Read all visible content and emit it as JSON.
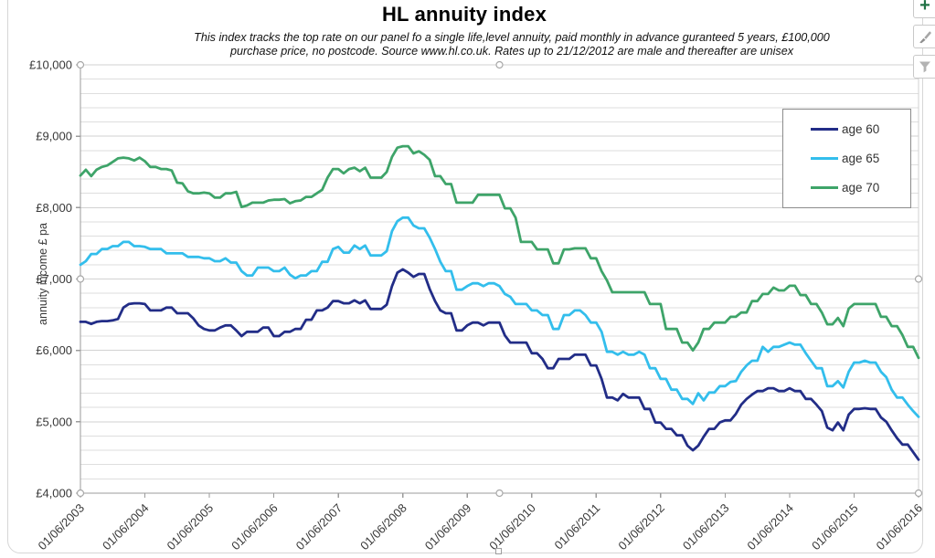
{
  "header": {
    "title": "HL annuity index",
    "subtitle_line1": "This index tracks the top rate on our panel fo a single life,level annuity, paid  monthly in advance guranteed 5 years, £100,000",
    "subtitle_line2": "purchase price, no postcode. Source www.hl.co.uk. Rates up to 21/12/2012 are male and thereafter are unisex"
  },
  "toolbar": {
    "buttons": [
      {
        "icon": "plus-icon",
        "color": "#217346"
      },
      {
        "icon": "brush-icon",
        "color": "#999999"
      },
      {
        "icon": "funnel-icon",
        "color": "#b3b3b3"
      }
    ]
  },
  "colors": {
    "gridline_minor": "#dedede",
    "gridline_major": "#d2d2d2",
    "axis": "#9b9b9b",
    "handle_stroke": "#a8a8a8",
    "label_text": "#383838"
  },
  "chart_data": {
    "type": "line",
    "title": "HL annuity index",
    "xlabel": "",
    "ylabel": "annuity income £ pa",
    "ylim": [
      4000,
      10000
    ],
    "y_major_unit": 1000,
    "y_minor_unit": 200,
    "y_tick_labels": [
      "£10,000",
      "£9,000",
      "£8,000",
      "£7,000",
      "£6,000",
      "£5,000",
      "£4,000"
    ],
    "x_tick_labels": [
      "01/06/2003",
      "01/06/2004",
      "01/06/2005",
      "01/06/2006",
      "01/06/2007",
      "01/06/2008",
      "01/06/2009",
      "01/06/2010",
      "01/06/2011",
      "01/06/2012",
      "01/06/2013",
      "01/06/2014",
      "01/06/2015",
      "01/06/2016"
    ],
    "frequency": "monthly",
    "x_start": "01/06/2003",
    "x_end": "01/06/2016",
    "grid": true,
    "legend_position": "top-right-box",
    "series": [
      {
        "name": "age 60",
        "color": "#222D87",
        "values": [
          6400,
          6400,
          6370,
          6400,
          6410,
          6410,
          6420,
          6440,
          6600,
          6650,
          6660,
          6660,
          6650,
          6560,
          6560,
          6560,
          6600,
          6600,
          6520,
          6520,
          6520,
          6450,
          6350,
          6300,
          6280,
          6280,
          6320,
          6350,
          6350,
          6280,
          6200,
          6260,
          6260,
          6260,
          6320,
          6320,
          6200,
          6200,
          6260,
          6260,
          6300,
          6300,
          6430,
          6430,
          6560,
          6560,
          6600,
          6690,
          6690,
          6660,
          6660,
          6700,
          6660,
          6700,
          6580,
          6580,
          6580,
          6640,
          6900,
          7090,
          7135,
          7090,
          7030,
          7070,
          7070,
          6860,
          6690,
          6560,
          6520,
          6520,
          6280,
          6280,
          6350,
          6390,
          6390,
          6350,
          6390,
          6390,
          6390,
          6210,
          6110,
          6110,
          6110,
          6110,
          5960,
          5960,
          5880,
          5750,
          5750,
          5880,
          5880,
          5880,
          5940,
          5940,
          5940,
          5790,
          5790,
          5600,
          5340,
          5340,
          5300,
          5390,
          5340,
          5340,
          5340,
          5180,
          5180,
          4990,
          4990,
          4900,
          4900,
          4810,
          4810,
          4665,
          4600,
          4665,
          4790,
          4900,
          4900,
          4990,
          5020,
          5020,
          5110,
          5240,
          5320,
          5380,
          5430,
          5430,
          5470,
          5470,
          5430,
          5430,
          5470,
          5430,
          5430,
          5320,
          5320,
          5240,
          5150,
          4920,
          4880,
          4990,
          4880,
          5100,
          5180,
          5180,
          5190,
          5180,
          5180,
          5060,
          5000,
          4880,
          4770,
          4680,
          4680,
          4575,
          4470
        ]
      },
      {
        "name": "age 65",
        "color": "#33BEEC",
        "values": [
          7200,
          7250,
          7350,
          7350,
          7420,
          7420,
          7460,
          7460,
          7520,
          7520,
          7460,
          7460,
          7450,
          7420,
          7420,
          7420,
          7360,
          7360,
          7360,
          7360,
          7310,
          7310,
          7310,
          7290,
          7290,
          7250,
          7250,
          7290,
          7230,
          7230,
          7110,
          7050,
          7050,
          7160,
          7160,
          7160,
          7110,
          7110,
          7160,
          7060,
          7010,
          7050,
          7050,
          7110,
          7110,
          7240,
          7240,
          7420,
          7450,
          7370,
          7370,
          7470,
          7420,
          7470,
          7330,
          7330,
          7330,
          7390,
          7670,
          7810,
          7860,
          7860,
          7750,
          7710,
          7710,
          7580,
          7420,
          7240,
          7110,
          7110,
          6850,
          6850,
          6900,
          6940,
          6940,
          6900,
          6940,
          6940,
          6900,
          6790,
          6750,
          6650,
          6650,
          6650,
          6560,
          6560,
          6495,
          6495,
          6300,
          6300,
          6495,
          6495,
          6560,
          6560,
          6495,
          6390,
          6390,
          6260,
          5980,
          5980,
          5940,
          5980,
          5940,
          5940,
          5980,
          5940,
          5750,
          5750,
          5600,
          5600,
          5450,
          5450,
          5320,
          5320,
          5250,
          5400,
          5300,
          5410,
          5410,
          5500,
          5500,
          5560,
          5570,
          5700,
          5790,
          5855,
          5855,
          6050,
          5980,
          6050,
          6050,
          6080,
          6110,
          6080,
          6080,
          5960,
          5855,
          5750,
          5750,
          5500,
          5500,
          5570,
          5480,
          5700,
          5830,
          5830,
          5855,
          5830,
          5830,
          5700,
          5625,
          5450,
          5340,
          5340,
          5240,
          5150,
          5070
        ]
      },
      {
        "name": "age 70",
        "color": "#3EA469",
        "values": [
          8450,
          8530,
          8440,
          8530,
          8570,
          8590,
          8640,
          8690,
          8700,
          8690,
          8660,
          8700,
          8650,
          8570,
          8570,
          8540,
          8540,
          8520,
          8350,
          8340,
          8230,
          8200,
          8200,
          8210,
          8200,
          8140,
          8140,
          8200,
          8200,
          8220,
          8010,
          8030,
          8070,
          8070,
          8070,
          8100,
          8110,
          8110,
          8120,
          8060,
          8090,
          8100,
          8150,
          8150,
          8200,
          8250,
          8420,
          8540,
          8540,
          8480,
          8540,
          8560,
          8510,
          8560,
          8420,
          8420,
          8420,
          8500,
          8710,
          8840,
          8860,
          8860,
          8760,
          8790,
          8740,
          8670,
          8440,
          8440,
          8330,
          8330,
          8070,
          8070,
          8070,
          8070,
          8180,
          8180,
          8180,
          8180,
          8180,
          7990,
          7990,
          7860,
          7520,
          7520,
          7520,
          7415,
          7415,
          7415,
          7220,
          7220,
          7415,
          7415,
          7430,
          7430,
          7430,
          7290,
          7290,
          7110,
          6980,
          6815,
          6815,
          6815,
          6815,
          6815,
          6815,
          6815,
          6650,
          6650,
          6650,
          6300,
          6300,
          6300,
          6110,
          6110,
          6000,
          6110,
          6300,
          6300,
          6390,
          6390,
          6390,
          6470,
          6470,
          6530,
          6530,
          6690,
          6690,
          6790,
          6790,
          6880,
          6840,
          6840,
          6905,
          6905,
          6775,
          6775,
          6650,
          6650,
          6530,
          6365,
          6365,
          6455,
          6340,
          6585,
          6650,
          6650,
          6650,
          6650,
          6650,
          6470,
          6470,
          6340,
          6340,
          6215,
          6050,
          6050,
          5895
        ]
      }
    ]
  }
}
